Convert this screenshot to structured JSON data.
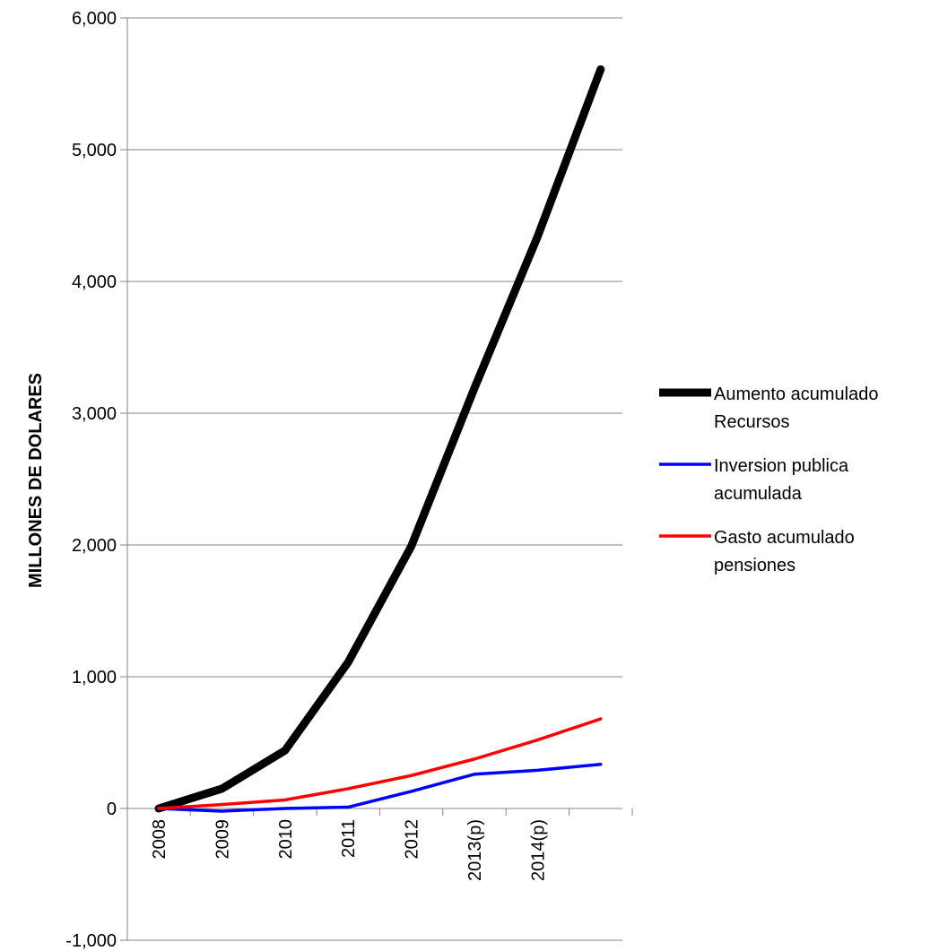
{
  "chart_data": {
    "type": "line",
    "ylabel": "MILLONES DE DOLARES",
    "ylim": [
      -1000,
      6000
    ],
    "yticks": [
      -1000,
      0,
      1000,
      2000,
      3000,
      4000,
      5000,
      6000
    ],
    "ytick_labels": [
      "-1,000",
      "0",
      "1,000",
      "2,000",
      "3,000",
      "4,000",
      "5,000",
      "6,000"
    ],
    "grid": true,
    "legend_position": "right",
    "categories": [
      "2008",
      "2009",
      "2010",
      "2011",
      "2012",
      "2013(p)",
      "2014(p)",
      ""
    ],
    "series": [
      {
        "name": "Aumento acumulado Recursos",
        "legend_lines": [
          "Aumento acumulado",
          "Recursos"
        ],
        "color": "#000000",
        "values": [
          0,
          150,
          440,
          1110,
          1990,
          3190,
          4340,
          5610
        ]
      },
      {
        "name": "Inversion publica acumulada",
        "legend_lines": [
          "Inversion publica",
          "acumulada"
        ],
        "color": "#0000ff",
        "values": [
          0,
          -20,
          0,
          10,
          130,
          260,
          290,
          335
        ]
      },
      {
        "name": "Gasto acumulado pensiones",
        "legend_lines": [
          "Gasto acumulado",
          "pensiones"
        ],
        "color": "#ff0000",
        "values": [
          0,
          30,
          65,
          150,
          250,
          375,
          520,
          680
        ]
      }
    ]
  }
}
